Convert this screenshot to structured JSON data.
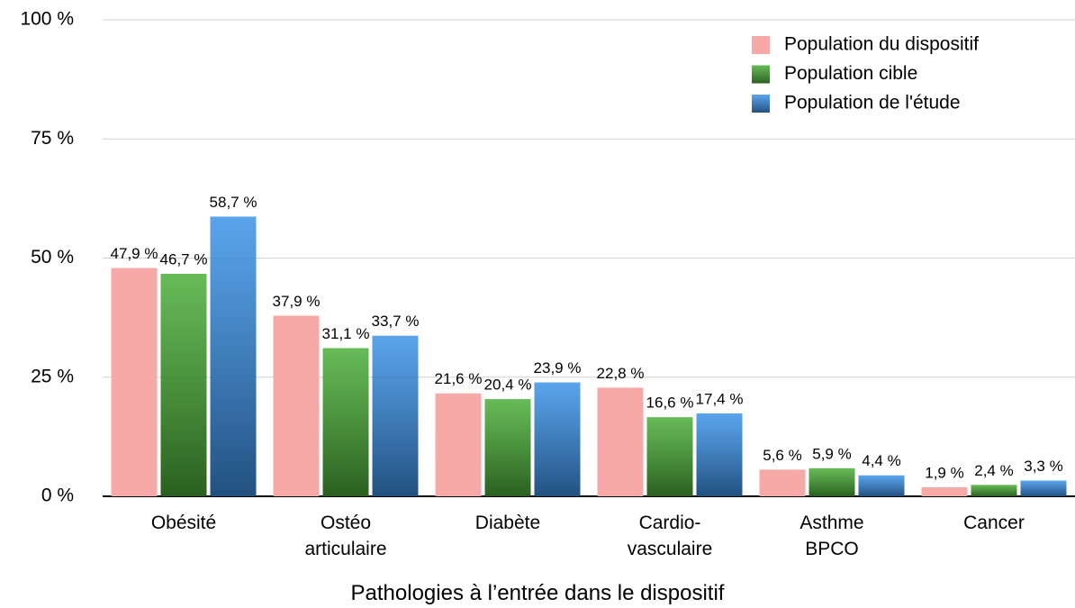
{
  "chart_data": {
    "type": "bar",
    "x_label": "Pathologies à l’entrée dans le dispositif",
    "categories": [
      "Obésité",
      "Ostéo\narticulaire",
      "Diabète",
      "Cardio-\nvasculaire",
      "Asthme\nBPCO",
      "Cancer"
    ],
    "series": [
      {
        "name": "Population du dispositif",
        "color": "#f7a9a8",
        "values": [
          47.9,
          37.9,
          21.6,
          22.8,
          5.6,
          1.9
        ],
        "value_labels": [
          "47,9 %",
          "37,9 %",
          "21,6 %",
          "22,8 %",
          "5,6 %",
          "1,9 %"
        ]
      },
      {
        "name": "Population cible",
        "color": "#4caf3a",
        "values": [
          46.7,
          31.1,
          20.4,
          16.6,
          5.9,
          2.4
        ],
        "value_labels": [
          "46,7 %",
          "31,1 %",
          "20,4 %",
          "16,6 %",
          "5,9 %",
          "2,4 %"
        ]
      },
      {
        "name": "Population de l'étude",
        "color": "#3d94e8",
        "values": [
          58.7,
          33.7,
          23.9,
          17.4,
          4.4,
          3.3
        ],
        "value_labels": [
          "58,7 %",
          "33,7 %",
          "23,9 %",
          "17,4 %",
          "4,4 %",
          "3,3 %"
        ]
      }
    ],
    "ylim": [
      0,
      100
    ],
    "yticks": [
      {
        "value": 0,
        "label": "0 %"
      },
      {
        "value": 25,
        "label": "25 %"
      },
      {
        "value": 50,
        "label": "50 %"
      },
      {
        "value": 75,
        "label": "75 %"
      },
      {
        "value": 100,
        "label": "100 %"
      }
    ],
    "grid": true,
    "legend": "top-right"
  }
}
